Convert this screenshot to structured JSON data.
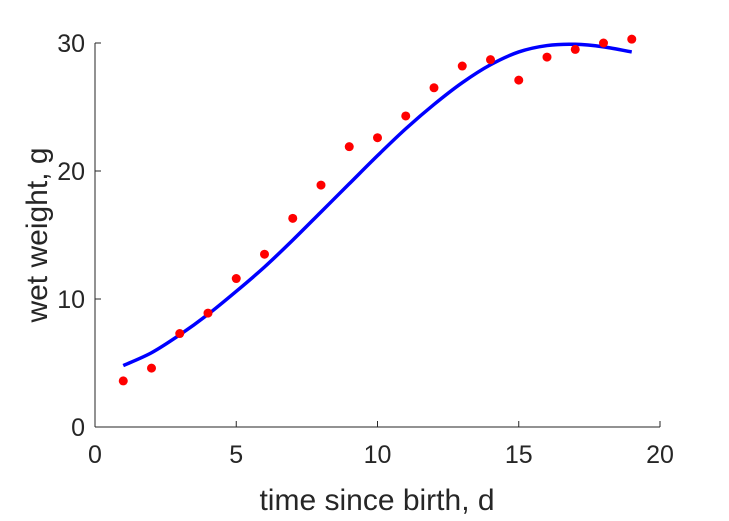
{
  "chart_data": {
    "type": "scatter",
    "title": "",
    "xlabel": "time since birth, d",
    "ylabel": "wet weight, g",
    "xlim": [
      0,
      20
    ],
    "ylim": [
      0,
      30
    ],
    "xticks": [
      0,
      5,
      10,
      15,
      20
    ],
    "yticks": [
      0,
      10,
      20,
      30
    ],
    "x_tick_labels": [
      "0",
      "5",
      "10",
      "15",
      "20"
    ],
    "y_tick_labels": [
      "0",
      "10",
      "20",
      "30"
    ],
    "grid": false,
    "legend": "none",
    "series": [
      {
        "type": "scatter",
        "color": "#ff0000",
        "points": [
          [
            1,
            3.6
          ],
          [
            2,
            4.6
          ],
          [
            3,
            7.3
          ],
          [
            4,
            8.9
          ],
          [
            5,
            11.6
          ],
          [
            6,
            13.5
          ],
          [
            7,
            16.3
          ],
          [
            8,
            18.9
          ],
          [
            9,
            21.9
          ],
          [
            10,
            22.6
          ],
          [
            11,
            24.3
          ],
          [
            12,
            26.5
          ],
          [
            13,
            28.2
          ],
          [
            14,
            28.7
          ],
          [
            15,
            27.1
          ],
          [
            16,
            28.9
          ],
          [
            17,
            29.5
          ],
          [
            18,
            30.0
          ],
          [
            19,
            30.3
          ]
        ]
      },
      {
        "type": "line",
        "color": "#0000ff",
        "points": [
          [
            1,
            4.8
          ],
          [
            2,
            5.8
          ],
          [
            3,
            7.2
          ],
          [
            4,
            8.8
          ],
          [
            5,
            10.6
          ],
          [
            6,
            12.5
          ],
          [
            7,
            14.6
          ],
          [
            8,
            16.8
          ],
          [
            9,
            19.0
          ],
          [
            10,
            21.2
          ],
          [
            11,
            23.3
          ],
          [
            12,
            25.2
          ],
          [
            13,
            26.9
          ],
          [
            14,
            28.3
          ],
          [
            15,
            29.3
          ],
          [
            16,
            29.8
          ],
          [
            17,
            29.9
          ],
          [
            18,
            29.7
          ],
          [
            19,
            29.3
          ]
        ]
      }
    ]
  }
}
